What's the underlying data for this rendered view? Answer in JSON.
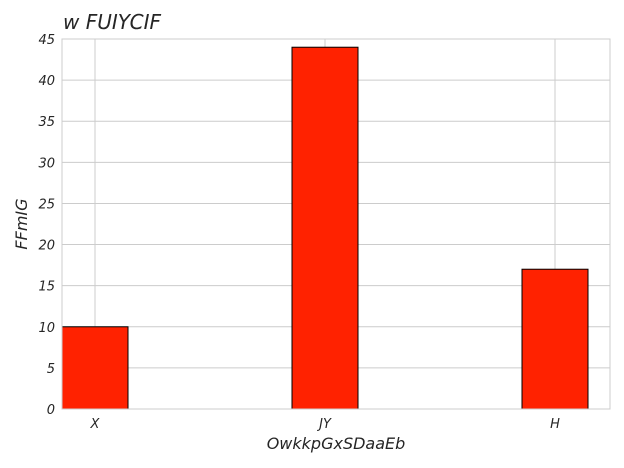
{
  "chart_data": {
    "type": "bar",
    "title": "w FUIYCIF",
    "xlabel": "OwkkpGxSDaaEb",
    "ylabel": "FFmIG",
    "categories": [
      "X",
      "JY",
      "H"
    ],
    "values": [
      10,
      44,
      17
    ],
    "ylim": [
      0,
      45
    ],
    "yticks": [
      0,
      5,
      10,
      15,
      20,
      25,
      30,
      35,
      40,
      45
    ],
    "grid": true,
    "colors": {
      "bar": "#ff2200",
      "bar_edge": "#000000",
      "grid": "#cccccc",
      "text": "#262626"
    }
  }
}
